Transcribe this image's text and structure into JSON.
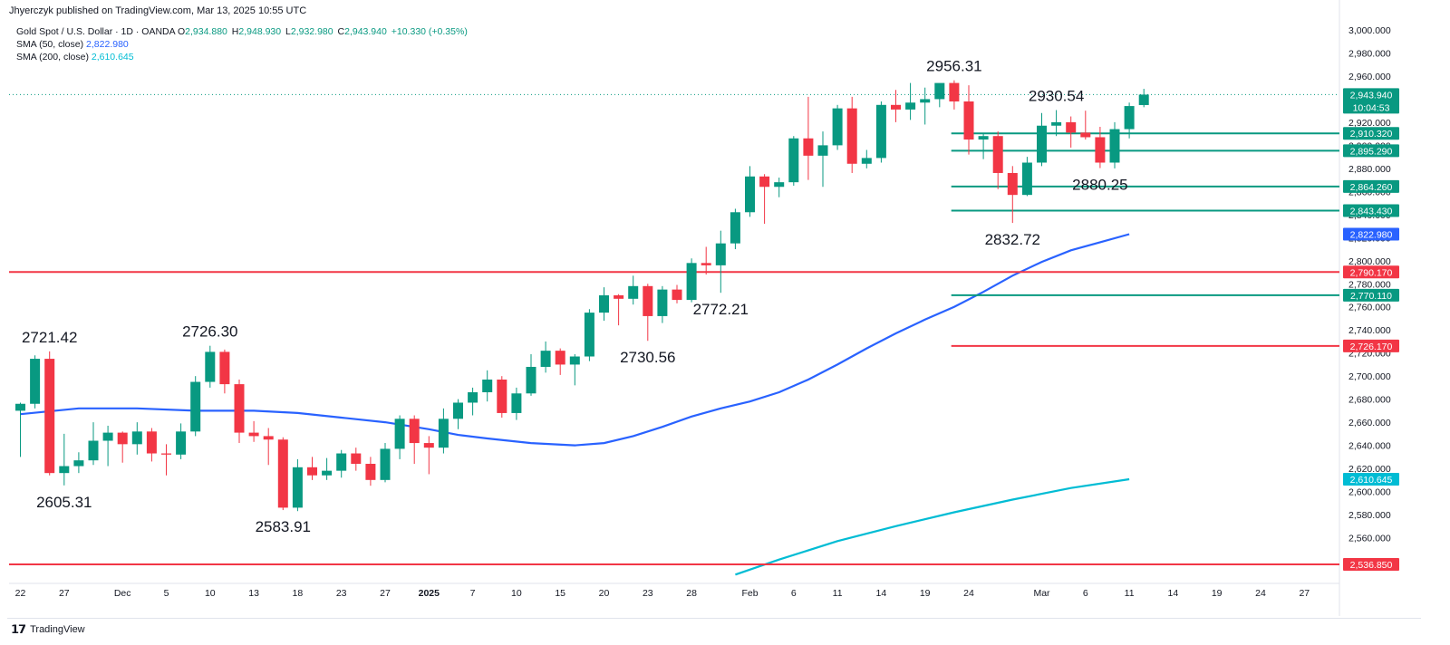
{
  "header": {
    "publisher": "Jhyerczyk published on TradingView.com, Mar 13, 2025 10:55 UTC",
    "symbol": "Gold Spot / U.S. Dollar · 1D · OANDA",
    "o_label": "O",
    "o_value": "2,934.880",
    "h_label": "H",
    "h_value": "2,948.930",
    "l_label": "L",
    "l_value": "2,932.980",
    "c_label": "C",
    "c_value": "2,943.940",
    "change": "+10.330 (+0.35%)",
    "sma50_label": "SMA (50, close)",
    "sma50_value": "2,822.980",
    "sma200_label": "SMA (200, close)",
    "sma200_value": "2,610.645"
  },
  "branding": {
    "logo": "𝟭𝟳",
    "name": "TradingView"
  },
  "colors": {
    "up": "#089981",
    "down": "#f23645",
    "sma50": "#2962ff",
    "sma200": "#00bcd4",
    "support": "#089981",
    "resistance": "#f23645"
  },
  "chart_data": {
    "type": "candlestick",
    "ylim": [
      2520,
      3010
    ],
    "y_ticks": [
      2540,
      2560,
      2580,
      2600,
      2620,
      2640,
      2660,
      2680,
      2700,
      2720,
      2740,
      2760,
      2780,
      2800,
      2820,
      2840,
      2860,
      2880,
      2900,
      2920,
      2940,
      2960,
      2980,
      3000
    ],
    "x_ticks": [
      {
        "label": "22",
        "x": 0
      },
      {
        "label": "27",
        "x": 3
      },
      {
        "label": "Dec",
        "x": 7
      },
      {
        "label": "5",
        "x": 10
      },
      {
        "label": "10",
        "x": 13
      },
      {
        "label": "13",
        "x": 16
      },
      {
        "label": "18",
        "x": 19
      },
      {
        "label": "23",
        "x": 22
      },
      {
        "label": "27",
        "x": 25
      },
      {
        "label": "2025",
        "x": 28
      },
      {
        "label": "7",
        "x": 31
      },
      {
        "label": "10",
        "x": 34
      },
      {
        "label": "15",
        "x": 37
      },
      {
        "label": "20",
        "x": 40
      },
      {
        "label": "23",
        "x": 43
      },
      {
        "label": "28",
        "x": 46
      },
      {
        "label": "Feb",
        "x": 50
      },
      {
        "label": "6",
        "x": 53
      },
      {
        "label": "11",
        "x": 56
      },
      {
        "label": "14",
        "x": 59
      },
      {
        "label": "19",
        "x": 62
      },
      {
        "label": "24",
        "x": 65
      },
      {
        "label": "Mar",
        "x": 70
      },
      {
        "label": "6",
        "x": 73
      },
      {
        "label": "11",
        "x": 76
      },
      {
        "label": "14",
        "x": 79
      },
      {
        "label": "19",
        "x": 82
      },
      {
        "label": "24",
        "x": 85
      },
      {
        "label": "27",
        "x": 88
      }
    ],
    "candles": [
      [
        2670,
        2677,
        2630,
        2676
      ],
      [
        2676,
        2718,
        2672,
        2715
      ],
      [
        2715,
        2721.42,
        2614,
        2616
      ],
      [
        2616,
        2650,
        2605.31,
        2622
      ],
      [
        2622,
        2634,
        2616,
        2627
      ],
      [
        2627,
        2660,
        2623,
        2644
      ],
      [
        2644,
        2657,
        2622,
        2651
      ],
      [
        2651,
        2652,
        2625,
        2641
      ],
      [
        2641,
        2660,
        2632,
        2652
      ],
      [
        2652,
        2655,
        2626,
        2633
      ],
      [
        2633,
        2641,
        2614,
        2632
      ],
      [
        2632,
        2659,
        2628,
        2652
      ],
      [
        2652,
        2700,
        2648,
        2695
      ],
      [
        2695,
        2726.3,
        2690,
        2721
      ],
      [
        2721,
        2723,
        2685,
        2693
      ],
      [
        2693,
        2697,
        2642,
        2651
      ],
      [
        2651,
        2661,
        2643,
        2648
      ],
      [
        2648,
        2655,
        2623,
        2645
      ],
      [
        2645,
        2647,
        2583.91,
        2586
      ],
      [
        2586,
        2628,
        2583,
        2621
      ],
      [
        2621,
        2630,
        2610,
        2614
      ],
      [
        2614,
        2629,
        2610,
        2618
      ],
      [
        2618,
        2636,
        2612,
        2633
      ],
      [
        2633,
        2638,
        2618,
        2624
      ],
      [
        2624,
        2630,
        2605,
        2610
      ],
      [
        2610,
        2642,
        2608,
        2637
      ],
      [
        2637,
        2666,
        2628,
        2663
      ],
      [
        2663,
        2666,
        2624,
        2642
      ],
      [
        2642,
        2648,
        2615,
        2638
      ],
      [
        2638,
        2672,
        2633,
        2663
      ],
      [
        2663,
        2680,
        2654,
        2677
      ],
      [
        2677,
        2690,
        2666,
        2686
      ],
      [
        2686,
        2705,
        2678,
        2697
      ],
      [
        2697,
        2700,
        2664,
        2668
      ],
      [
        2668,
        2690,
        2662,
        2685
      ],
      [
        2685,
        2719,
        2683,
        2708
      ],
      [
        2708,
        2730,
        2703,
        2722
      ],
      [
        2722,
        2724,
        2701,
        2710
      ],
      [
        2710,
        2719,
        2692,
        2717
      ],
      [
        2717,
        2758,
        2713,
        2755
      ],
      [
        2755,
        2777,
        2748,
        2770
      ],
      [
        2770,
        2771,
        2744,
        2767
      ],
      [
        2767,
        2787,
        2762,
        2778
      ],
      [
        2778,
        2780,
        2730.56,
        2752
      ],
      [
        2752,
        2778,
        2746,
        2775
      ],
      [
        2775,
        2779,
        2763,
        2766
      ],
      [
        2766,
        2802,
        2764,
        2798
      ],
      [
        2798,
        2812,
        2788,
        2796
      ],
      [
        2796,
        2826,
        2772.21,
        2815
      ],
      [
        2815,
        2845,
        2810,
        2842
      ],
      [
        2842,
        2882,
        2838,
        2873
      ],
      [
        2873,
        2875,
        2832,
        2864
      ],
      [
        2864,
        2872,
        2855,
        2868
      ],
      [
        2868,
        2908,
        2865,
        2906
      ],
      [
        2906,
        2942,
        2870,
        2891
      ],
      [
        2891,
        2912,
        2864,
        2900
      ],
      [
        2900,
        2935,
        2896,
        2932
      ],
      [
        2932,
        2942,
        2876,
        2884
      ],
      [
        2884,
        2896,
        2880,
        2889
      ],
      [
        2889,
        2938,
        2885,
        2935
      ],
      [
        2935,
        2948,
        2920,
        2931
      ],
      [
        2931,
        2954,
        2922,
        2937
      ],
      [
        2937,
        2950,
        2918,
        2940
      ],
      [
        2940,
        2951,
        2933,
        2954
      ],
      [
        2954,
        2956.31,
        2931,
        2938
      ],
      [
        2938,
        2952,
        2892,
        2905
      ],
      [
        2905,
        2910,
        2888,
        2908
      ],
      [
        2908,
        2912,
        2862,
        2876
      ],
      [
        2876,
        2882,
        2832.72,
        2857
      ],
      [
        2857,
        2890,
        2856,
        2885
      ],
      [
        2885,
        2928,
        2882,
        2917
      ],
      [
        2917,
        2930.54,
        2908,
        2920
      ],
      [
        2920,
        2925,
        2898,
        2911
      ],
      [
        2911,
        2930,
        2905,
        2907
      ],
      [
        2907,
        2916,
        2880.25,
        2885
      ],
      [
        2885,
        2920,
        2880,
        2914
      ],
      [
        2914,
        2937,
        2906,
        2934
      ],
      [
        2934.88,
        2948.93,
        2932.98,
        2943.94
      ]
    ],
    "sma50": [
      [
        0,
        2667
      ],
      [
        4,
        2672
      ],
      [
        8,
        2672
      ],
      [
        12,
        2670
      ],
      [
        16,
        2670
      ],
      [
        19,
        2668
      ],
      [
        22,
        2664
      ],
      [
        25,
        2660
      ],
      [
        28,
        2654
      ],
      [
        30,
        2649
      ],
      [
        32,
        2646
      ],
      [
        35,
        2642
      ],
      [
        38,
        2640
      ],
      [
        40,
        2642
      ],
      [
        42,
        2648
      ],
      [
        44,
        2656
      ],
      [
        46,
        2665
      ],
      [
        48,
        2672
      ],
      [
        50,
        2678
      ],
      [
        52,
        2686
      ],
      [
        54,
        2697
      ],
      [
        56,
        2710
      ],
      [
        58,
        2724
      ],
      [
        60,
        2737
      ],
      [
        62,
        2749
      ],
      [
        64,
        2760
      ],
      [
        66,
        2773
      ],
      [
        68,
        2787
      ],
      [
        70,
        2799
      ],
      [
        72,
        2809
      ],
      [
        74,
        2816
      ],
      [
        76,
        2822.98
      ]
    ],
    "sma200": [
      [
        49,
        2528
      ],
      [
        52,
        2541
      ],
      [
        56,
        2557
      ],
      [
        60,
        2570
      ],
      [
        64,
        2582
      ],
      [
        68,
        2593
      ],
      [
        72,
        2603
      ],
      [
        76,
        2610.645
      ]
    ],
    "horizontal_levels": [
      {
        "value": 2910.32,
        "label": "2,910.320",
        "color": "#089981",
        "from": 63.8
      },
      {
        "value": 2895.29,
        "label": "2,895.290",
        "color": "#089981",
        "from": 63.8
      },
      {
        "value": 2864.26,
        "label": "2,864.260",
        "color": "#089981",
        "from": 63.8
      },
      {
        "value": 2843.43,
        "label": "2,843.430",
        "color": "#089981",
        "from": 63.8
      },
      {
        "value": 2790.17,
        "label": "2,790.170",
        "color": "#f23645",
        "from": -1
      },
      {
        "value": 2770.11,
        "label": "2,770.110",
        "color": "#089981",
        "from": 63.8
      },
      {
        "value": 2726.17,
        "label": "2,726.170",
        "color": "#f23645",
        "from": 63.8
      },
      {
        "value": 2536.85,
        "label": "2,536.850",
        "color": "#f23645",
        "from": -1
      }
    ],
    "price_tags": [
      {
        "value": 2943.94,
        "label": "2,943.940",
        "sub": "10:04:53",
        "color": "#089981"
      },
      {
        "value": 2822.98,
        "label": "2,822.980",
        "color": "#2962ff"
      },
      {
        "value": 2610.645,
        "label": "2,610.645",
        "color": "#00bcd4"
      }
    ],
    "annotations": [
      {
        "text": "2721.42",
        "x": 2,
        "value": 2721.42,
        "pos": "above"
      },
      {
        "text": "2605.31",
        "x": 3,
        "value": 2605.31,
        "pos": "below"
      },
      {
        "text": "2726.30",
        "x": 13,
        "value": 2726.3,
        "pos": "above"
      },
      {
        "text": "2583.91",
        "x": 18,
        "value": 2583.91,
        "pos": "below"
      },
      {
        "text": "2730.56",
        "x": 43,
        "value": 2730.56,
        "pos": "below"
      },
      {
        "text": "2772.21",
        "x": 48,
        "value": 2772.21,
        "pos": "below"
      },
      {
        "text": "2956.31",
        "x": 64,
        "value": 2956.31,
        "pos": "above"
      },
      {
        "text": "2832.72",
        "x": 68,
        "value": 2832.72,
        "pos": "below"
      },
      {
        "text": "2930.54",
        "x": 71,
        "value": 2930.54,
        "pos": "above"
      },
      {
        "text": "2880.25",
        "x": 74,
        "value": 2880.25,
        "pos": "below"
      }
    ]
  }
}
